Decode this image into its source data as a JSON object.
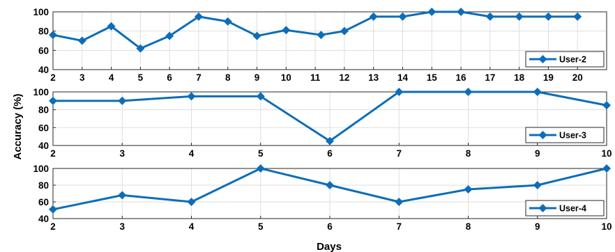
{
  "colors": {
    "line": "#0c6db8",
    "grid": "#dedede",
    "axis": "#262626"
  },
  "chart_data": {
    "type": "line",
    "ylabel": "Accuracy (%)",
    "xlabel": "Days",
    "subplots": [
      {
        "series_name": "User-2",
        "x": [
          2,
          3,
          4,
          5,
          6,
          7,
          8,
          9,
          10,
          11.2,
          12,
          13,
          14,
          15,
          16,
          17,
          18,
          19,
          20
        ],
        "values": [
          76,
          70,
          85,
          62,
          75,
          95,
          90,
          75,
          81,
          76,
          80,
          95,
          95,
          100,
          100,
          95,
          95,
          95,
          95
        ],
        "xticks": [
          2,
          3,
          4,
          5,
          6,
          7,
          8,
          9,
          10,
          11,
          12,
          13,
          14,
          15,
          16,
          17,
          18,
          19,
          20
        ],
        "xtick_labels": [
          "2",
          "3",
          "4",
          "5",
          "6",
          "7",
          "8",
          "9",
          "10",
          "11",
          "12",
          "13",
          "14",
          "15",
          "16",
          "17",
          "18",
          "19",
          "20"
        ],
        "xlim": [
          2,
          21
        ],
        "ylim": [
          40,
          100
        ],
        "yticks": [
          40,
          60,
          80,
          100
        ],
        "ytick_labels": [
          "40",
          "60",
          "80",
          "100"
        ],
        "grid": true,
        "legend_position": "bottom-right"
      },
      {
        "series_name": "User-3",
        "x": [
          2,
          3,
          4,
          5,
          6,
          7,
          8,
          9,
          10
        ],
        "values": [
          90,
          90,
          95,
          95,
          45,
          100,
          100,
          100,
          85
        ],
        "xticks": [
          2,
          3,
          4,
          5,
          6,
          7,
          8,
          9,
          10
        ],
        "xtick_labels": [
          "2",
          "3",
          "4",
          "5",
          "6",
          "7",
          "8",
          "9",
          "10"
        ],
        "xlim": [
          2,
          10
        ],
        "ylim": [
          40,
          100
        ],
        "yticks": [
          40,
          60,
          80,
          100
        ],
        "ytick_labels": [
          "40",
          "60",
          "80",
          "100"
        ],
        "grid": true,
        "legend_position": "bottom-right"
      },
      {
        "series_name": "User-4",
        "x": [
          2,
          3,
          4,
          5,
          6,
          7,
          8,
          9,
          10
        ],
        "values": [
          51,
          68,
          60,
          100,
          80,
          60,
          75,
          80,
          100
        ],
        "xticks": [
          2,
          3,
          4,
          5,
          6,
          7,
          8,
          9,
          10
        ],
        "xtick_labels": [
          "2",
          "3",
          "4",
          "5",
          "6",
          "7",
          "8",
          "9",
          "10"
        ],
        "xlim": [
          2,
          10
        ],
        "ylim": [
          40,
          100
        ],
        "yticks": [
          40,
          60,
          80,
          100
        ],
        "ytick_labels": [
          "40",
          "60",
          "80",
          "100"
        ],
        "grid": true,
        "legend_position": "bottom-right"
      }
    ]
  }
}
